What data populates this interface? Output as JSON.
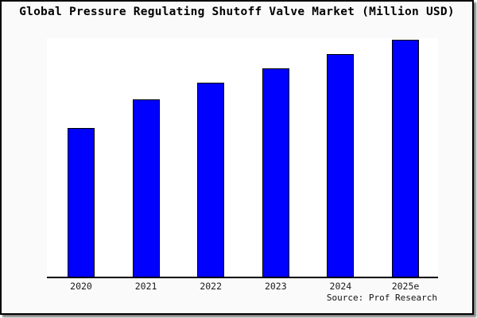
{
  "title": "Global Pressure Regulating Shutoff Valve Market (Million USD)",
  "source_note": "Source: Prof Research",
  "colors": {
    "bar_fill": "#0000ff",
    "bar_border": "#000000",
    "frame_border": "#000000",
    "canvas_background": "#fafafa",
    "plot_background": "#ffffff"
  },
  "chart_data": {
    "type": "bar",
    "title": "Global Pressure Regulating Shutoff Valve Market (Million USD)",
    "categories": [
      "2020",
      "2021",
      "2022",
      "2023",
      "2024",
      "2025e"
    ],
    "values": [
      63,
      75,
      82,
      88,
      94,
      100
    ],
    "value_note": "relative market size index, 2025e = 100; chart shows no numeric value axis",
    "xlabel": "",
    "ylabel": "",
    "ylim": [
      0,
      101
    ],
    "grid": false,
    "legend": false,
    "bar_color": "#0000ff",
    "bar_border_color": "#000000",
    "source": "Source: Prof Research"
  }
}
